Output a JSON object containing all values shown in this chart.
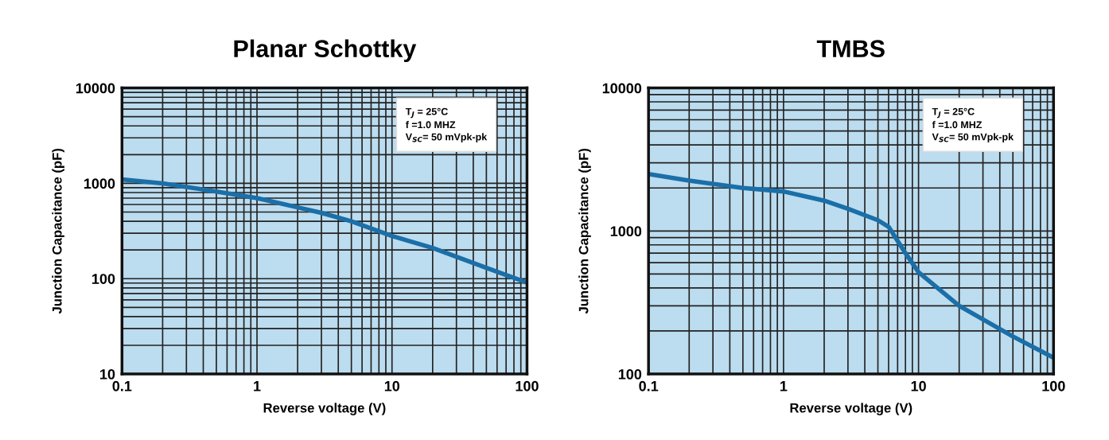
{
  "chart_data": [
    {
      "type": "line",
      "title": "Planar Schottky",
      "xlabel": "Reverse voltage (V)",
      "ylabel": "Junction Capacitance (pF)",
      "log": "xy",
      "grid": true,
      "legend": false,
      "xlim": [
        0.1,
        100
      ],
      "xticks": [
        0.1,
        1,
        10,
        100
      ],
      "ylim": [
        10,
        10000
      ],
      "yticks": [
        10,
        100,
        1000,
        10000
      ],
      "x": [
        0.1,
        0.2,
        0.5,
        1,
        2,
        3,
        5,
        10,
        20,
        50,
        100
      ],
      "series": [
        {
          "color": "#1b6fa8",
          "values": [
            1100,
            1000,
            820,
            700,
            560,
            490,
            400,
            280,
            210,
            130,
            91
          ]
        }
      ],
      "annotations": [
        "T$_{J}$ = 25°C",
        "f =1.0 MHZ",
        "V$_{SC}$= 50 mVpk-pk"
      ]
    },
    {
      "type": "line",
      "title": "TMBS",
      "xlabel": "Reverse voltage (V)",
      "ylabel": "Junction Capacitance (pF)",
      "log": "xy",
      "grid": true,
      "legend": false,
      "xlim": [
        0.1,
        100
      ],
      "xticks": [
        0.1,
        1,
        10,
        100
      ],
      "ylim": [
        100,
        10000
      ],
      "yticks": [
        100,
        1000,
        10000
      ],
      "x": [
        0.1,
        0.2,
        0.5,
        1,
        2,
        3,
        5,
        6,
        8,
        10,
        20,
        50,
        100
      ],
      "series": [
        {
          "color": "#1b6fa8",
          "values": [
            2500,
            2250,
            2000,
            1890,
            1630,
            1430,
            1190,
            1070,
            700,
            515,
            300,
            183,
            130
          ]
        }
      ],
      "annotations": [
        "T$_{J}$ = 25°C",
        "f =1.0 MHZ",
        "V$_{SC}$= 50 mVpk-pk"
      ]
    }
  ]
}
